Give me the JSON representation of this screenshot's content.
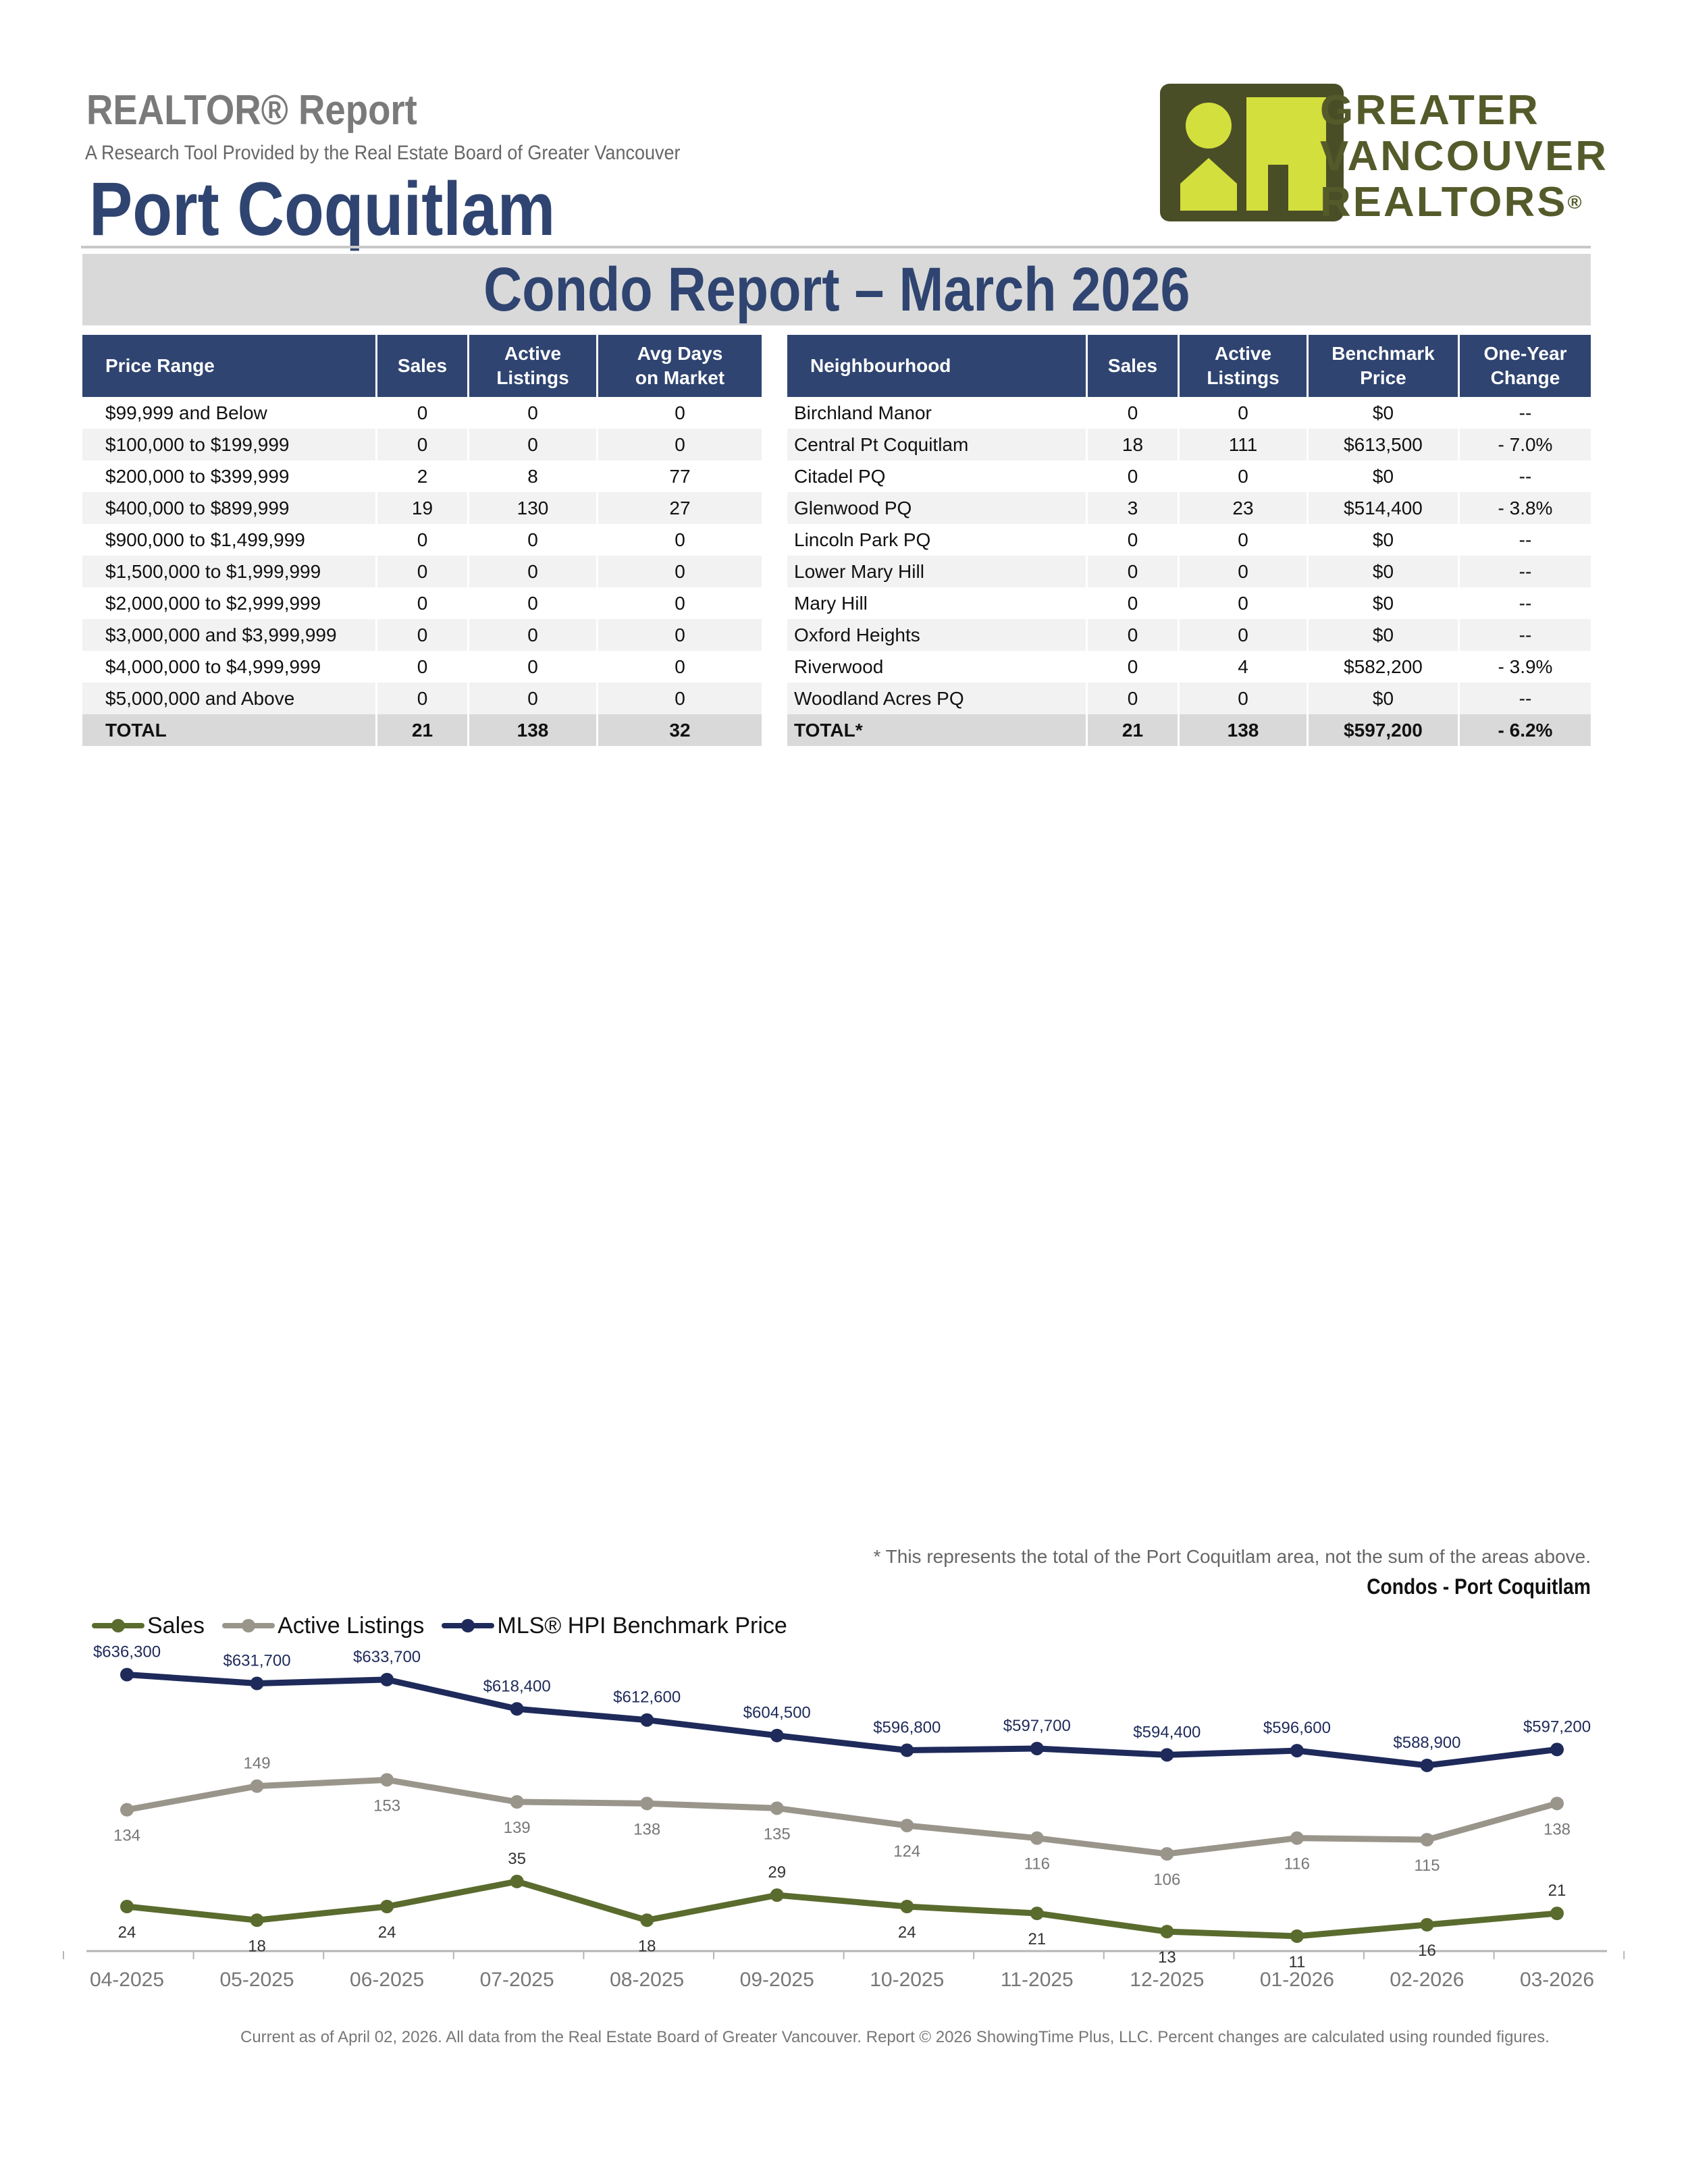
{
  "header": {
    "report_label": "REALTOR® Report",
    "subtitle": "A Research Tool Provided by the Real Estate Board of Greater Vancouver",
    "city": "Port Coquitlam",
    "banner": "Condo Report – March 2026"
  },
  "logo": {
    "line1": "GREATER",
    "line2": "VANCOUVER",
    "line3": "REALTORS",
    "registered": "®",
    "box_color": "#4a4e27",
    "accent_color": "#d3df3c"
  },
  "price_table": {
    "headers": [
      "Price Range",
      "Sales",
      "Active Listings",
      "Avg Days on Market"
    ],
    "rows": [
      [
        "$99,999 and Below",
        "0",
        "0",
        "0"
      ],
      [
        "$100,000 to $199,999",
        "0",
        "0",
        "0"
      ],
      [
        "$200,000 to $399,999",
        "2",
        "8",
        "77"
      ],
      [
        "$400,000 to $899,999",
        "19",
        "130",
        "27"
      ],
      [
        "$900,000 to $1,499,999",
        "0",
        "0",
        "0"
      ],
      [
        "$1,500,000 to $1,999,999",
        "0",
        "0",
        "0"
      ],
      [
        "$2,000,000 to $2,999,999",
        "0",
        "0",
        "0"
      ],
      [
        "$3,000,000 and $3,999,999",
        "0",
        "0",
        "0"
      ],
      [
        "$4,000,000 to $4,999,999",
        "0",
        "0",
        "0"
      ],
      [
        "$5,000,000 and Above",
        "0",
        "0",
        "0"
      ]
    ],
    "total": [
      "TOTAL",
      "21",
      "138",
      "32"
    ]
  },
  "neighbourhood_table": {
    "headers": [
      "Neighbourhood",
      "Sales",
      "Active Listings",
      "Benchmark Price",
      "One-Year Change"
    ],
    "rows": [
      [
        "Birchland Manor",
        "0",
        "0",
        "$0",
        "--"
      ],
      [
        "Central Pt Coquitlam",
        "18",
        "111",
        "$613,500",
        "- 7.0%"
      ],
      [
        "Citadel PQ",
        "0",
        "0",
        "$0",
        "--"
      ],
      [
        "Glenwood PQ",
        "3",
        "23",
        "$514,400",
        "- 3.8%"
      ],
      [
        "Lincoln Park PQ",
        "0",
        "0",
        "$0",
        "--"
      ],
      [
        "Lower Mary Hill",
        "0",
        "0",
        "$0",
        "--"
      ],
      [
        "Mary Hill",
        "0",
        "0",
        "$0",
        "--"
      ],
      [
        "Oxford Heights",
        "0",
        "0",
        "$0",
        "--"
      ],
      [
        "Riverwood",
        "0",
        "4",
        "$582,200",
        "- 3.9%"
      ],
      [
        "Woodland Acres PQ",
        "0",
        "0",
        "$0",
        "--"
      ]
    ],
    "total": [
      "TOTAL*",
      "21",
      "138",
      "$597,200",
      "- 6.2%"
    ]
  },
  "footnote": "* This represents the total of the Port Coquitlam area, not the sum of the areas above.",
  "chart_data": {
    "type": "line",
    "title": "Condos - Port Coquitlam",
    "legend_position": "top-left",
    "grid": false,
    "categories": [
      "04-2025",
      "05-2025",
      "06-2025",
      "07-2025",
      "08-2025",
      "09-2025",
      "10-2025",
      "11-2025",
      "12-2025",
      "01-2026",
      "02-2026",
      "03-2026"
    ],
    "series": [
      {
        "name": "Sales",
        "color": "#5a6b2e",
        "values": [
          24,
          18,
          24,
          35,
          18,
          29,
          24,
          21,
          13,
          11,
          16,
          21
        ],
        "labels": [
          "24",
          "18",
          "24",
          "35",
          "18",
          "29",
          "24",
          "21",
          "13",
          "11",
          "16",
          "21"
        ]
      },
      {
        "name": "Active Listings",
        "color": "#9a958b",
        "values": [
          134,
          149,
          153,
          139,
          138,
          135,
          124,
          116,
          106,
          116,
          115,
          138
        ],
        "labels": [
          "134",
          "149",
          "153",
          "139",
          "138",
          "135",
          "124",
          "116",
          "106",
          "116",
          "115",
          "138"
        ]
      },
      {
        "name": "MLS® HPI Benchmark Price",
        "color": "#1e2a5a",
        "values": [
          636300,
          631700,
          633700,
          618400,
          612600,
          604500,
          596800,
          597700,
          594400,
          596600,
          588900,
          597200
        ],
        "labels": [
          "$636,300",
          "$631,700",
          "$633,700",
          "$618,400",
          "$612,600",
          "$604,500",
          "$596,800",
          "$597,700",
          "$594,400",
          "$596,600",
          "$588,900",
          "$597,200"
        ]
      }
    ]
  },
  "bottom_note": "Current as of April 02, 2026. All data from the Real Estate Board of Greater Vancouver.  Report © 2026 ShowingTime Plus, LLC. Percent changes are calculated using rounded figures."
}
